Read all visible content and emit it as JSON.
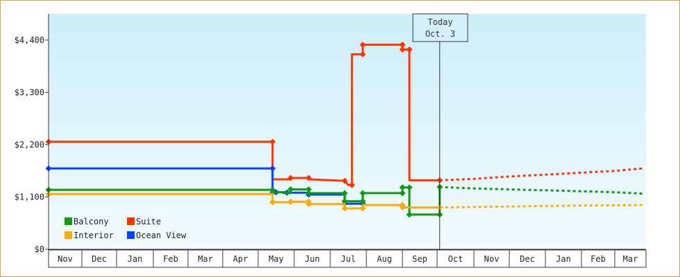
{
  "chart_data": {
    "type": "line",
    "subtype": "step-price-history",
    "ylim": [
      0,
      4950
    ],
    "y_ticks": [
      0,
      1100,
      2200,
      3300,
      4400
    ],
    "y_tick_labels": [
      "$0",
      "$1,100",
      "$2,200",
      "$3,300",
      "$4,400"
    ],
    "grid": false,
    "legend_position": "bottom-left",
    "months": [
      "Nov",
      "Dec",
      "Jan",
      "Feb",
      "Mar",
      "Apr",
      "May",
      "Jun",
      "Jul",
      "Aug",
      "Sep",
      "Oct",
      "Nov",
      "Dec",
      "Jan",
      "Feb",
      "Mar"
    ],
    "today": {
      "line1": "Today",
      "line2": "Oct. 3",
      "x": 11.07
    },
    "colors": {
      "background_top": "#cdeefa",
      "background_bottom": "#f2fbfe",
      "border": "#d9a441"
    },
    "series": [
      {
        "name": "Suite",
        "color": "#ff3300",
        "points": [
          [
            0,
            2260
          ],
          [
            6.4,
            2260
          ],
          [
            6.4,
            1470
          ],
          [
            6.9,
            1470
          ],
          [
            6.9,
            1500
          ],
          [
            7.4,
            1500
          ],
          [
            7.4,
            1470
          ],
          [
            8.4,
            1440
          ],
          [
            8.5,
            1350
          ],
          [
            8.6,
            1350
          ],
          [
            8.6,
            4100
          ],
          [
            8.9,
            4100
          ],
          [
            8.9,
            4300
          ],
          [
            10.0,
            4300
          ],
          [
            10.0,
            4200
          ],
          [
            10.2,
            4200
          ],
          [
            10.2,
            1450
          ],
          [
            11.07,
            1450
          ]
        ],
        "markers": [
          [
            0,
            2260
          ],
          [
            6.4,
            2260
          ],
          [
            6.9,
            1500
          ],
          [
            7.4,
            1500
          ],
          [
            8.4,
            1440
          ],
          [
            8.6,
            1350
          ],
          [
            8.9,
            4100
          ],
          [
            8.9,
            4300
          ],
          [
            10.0,
            4300
          ],
          [
            10.0,
            4200
          ],
          [
            10.2,
            4200
          ],
          [
            11.07,
            1450
          ]
        ],
        "forecast": [
          [
            11.07,
            1450
          ],
          [
            12,
            1480
          ],
          [
            13,
            1530
          ],
          [
            14,
            1570
          ],
          [
            15,
            1610
          ],
          [
            16,
            1650
          ],
          [
            16.9,
            1700
          ]
        ]
      },
      {
        "name": "Ocean View",
        "color": "#0044ff",
        "points": [
          [
            0,
            1700
          ],
          [
            6.4,
            1700
          ],
          [
            6.4,
            1180
          ],
          [
            6.5,
            1180
          ],
          [
            6.5,
            1200
          ],
          [
            6.8,
            1200
          ],
          [
            6.8,
            1190
          ],
          [
            7.4,
            1190
          ],
          [
            7.4,
            1150
          ],
          [
            8.4,
            1150
          ],
          [
            8.4,
            960
          ],
          [
            8.9,
            960
          ]
        ],
        "markers": [
          [
            0,
            1700
          ],
          [
            6.4,
            1700
          ],
          [
            6.5,
            1200
          ],
          [
            6.8,
            1190
          ],
          [
            7.4,
            1150
          ],
          [
            8.4,
            960
          ],
          [
            8.9,
            960
          ]
        ],
        "forecast": []
      },
      {
        "name": "Balcony",
        "color": "#119911",
        "points": [
          [
            0,
            1250
          ],
          [
            6.4,
            1250
          ],
          [
            6.4,
            1200
          ],
          [
            6.7,
            1200
          ],
          [
            6.7,
            1180
          ],
          [
            6.9,
            1180
          ],
          [
            6.9,
            1260
          ],
          [
            7.4,
            1260
          ],
          [
            7.4,
            1180
          ],
          [
            8.4,
            1180
          ],
          [
            8.4,
            1010
          ],
          [
            8.9,
            1010
          ],
          [
            8.9,
            1180
          ],
          [
            10.0,
            1180
          ],
          [
            10.0,
            1300
          ],
          [
            10.2,
            1300
          ],
          [
            10.2,
            730
          ],
          [
            10.8,
            730
          ],
          [
            11.07,
            730
          ],
          [
            11.07,
            1310
          ]
        ],
        "markers": [
          [
            0,
            1250
          ],
          [
            6.4,
            1250
          ],
          [
            6.4,
            1200
          ],
          [
            6.9,
            1260
          ],
          [
            7.4,
            1260
          ],
          [
            7.4,
            1180
          ],
          [
            8.4,
            1180
          ],
          [
            8.4,
            1010
          ],
          [
            8.9,
            1010
          ],
          [
            8.9,
            1180
          ],
          [
            10.0,
            1180
          ],
          [
            10.0,
            1300
          ],
          [
            10.2,
            1300
          ],
          [
            10.2,
            730
          ],
          [
            11.07,
            730
          ],
          [
            11.07,
            1310
          ]
        ],
        "forecast": [
          [
            11.07,
            1310
          ],
          [
            12,
            1280
          ],
          [
            13,
            1260
          ],
          [
            14,
            1240
          ],
          [
            15,
            1220
          ],
          [
            16,
            1200
          ],
          [
            16.9,
            1170
          ]
        ]
      },
      {
        "name": "Interior",
        "color": "#ffaa00",
        "points": [
          [
            0,
            1160
          ],
          [
            6.4,
            1160
          ],
          [
            6.4,
            990
          ],
          [
            6.9,
            990
          ],
          [
            6.9,
            1000
          ],
          [
            7.4,
            1000
          ],
          [
            7.4,
            950
          ],
          [
            8.4,
            950
          ],
          [
            8.4,
            860
          ],
          [
            8.9,
            860
          ],
          [
            8.9,
            930
          ],
          [
            10.0,
            930
          ],
          [
            10.0,
            880
          ],
          [
            11.07,
            880
          ]
        ],
        "markers": [
          [
            0,
            1160
          ],
          [
            6.4,
            990
          ],
          [
            6.9,
            1000
          ],
          [
            7.4,
            1000
          ],
          [
            7.4,
            950
          ],
          [
            8.4,
            860
          ],
          [
            8.9,
            860
          ],
          [
            10.0,
            930
          ],
          [
            10.0,
            880
          ],
          [
            11.07,
            880
          ]
        ],
        "forecast": [
          [
            11.07,
            880
          ],
          [
            12,
            890
          ],
          [
            13,
            900
          ],
          [
            14,
            910
          ],
          [
            15,
            920
          ],
          [
            16,
            925
          ],
          [
            16.9,
            930
          ]
        ]
      }
    ],
    "legend": [
      {
        "name": "Balcony",
        "color": "#119911"
      },
      {
        "name": "Suite",
        "color": "#ff3300"
      },
      {
        "name": "Interior",
        "color": "#ffaa00"
      },
      {
        "name": "Ocean View",
        "color": "#0044ff"
      }
    ]
  }
}
